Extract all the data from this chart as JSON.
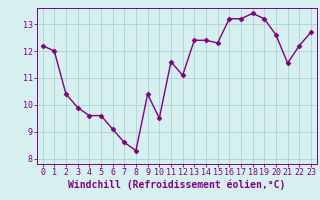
{
  "x": [
    0,
    1,
    2,
    3,
    4,
    5,
    6,
    7,
    8,
    9,
    10,
    11,
    12,
    13,
    14,
    15,
    16,
    17,
    18,
    19,
    20,
    21,
    22,
    23
  ],
  "y": [
    12.2,
    12.0,
    10.4,
    9.9,
    9.6,
    9.6,
    9.1,
    8.6,
    8.3,
    10.4,
    9.5,
    11.6,
    11.1,
    12.4,
    12.4,
    12.3,
    13.2,
    13.2,
    13.4,
    13.2,
    12.6,
    11.55,
    12.2,
    12.7
  ],
  "line_color": "#800080",
  "marker": "D",
  "marker_size": 2.5,
  "bg_color": "#d6f0f0",
  "grid_color": "#aad4d4",
  "xlabel": "Windchill (Refroidissement éolien,°C)",
  "ylabel": "",
  "ylim": [
    7.8,
    13.6
  ],
  "xlim": [
    -0.5,
    23.5
  ],
  "yticks": [
    8,
    9,
    10,
    11,
    12,
    13
  ],
  "xticks": [
    0,
    1,
    2,
    3,
    4,
    5,
    6,
    7,
    8,
    9,
    10,
    11,
    12,
    13,
    14,
    15,
    16,
    17,
    18,
    19,
    20,
    21,
    22,
    23
  ],
  "tick_color": "#800080",
  "tick_label_color": "#800080",
  "spine_color": "#800080",
  "xlabel_fontsize": 7,
  "tick_fontsize": 6,
  "line_width": 1.0
}
